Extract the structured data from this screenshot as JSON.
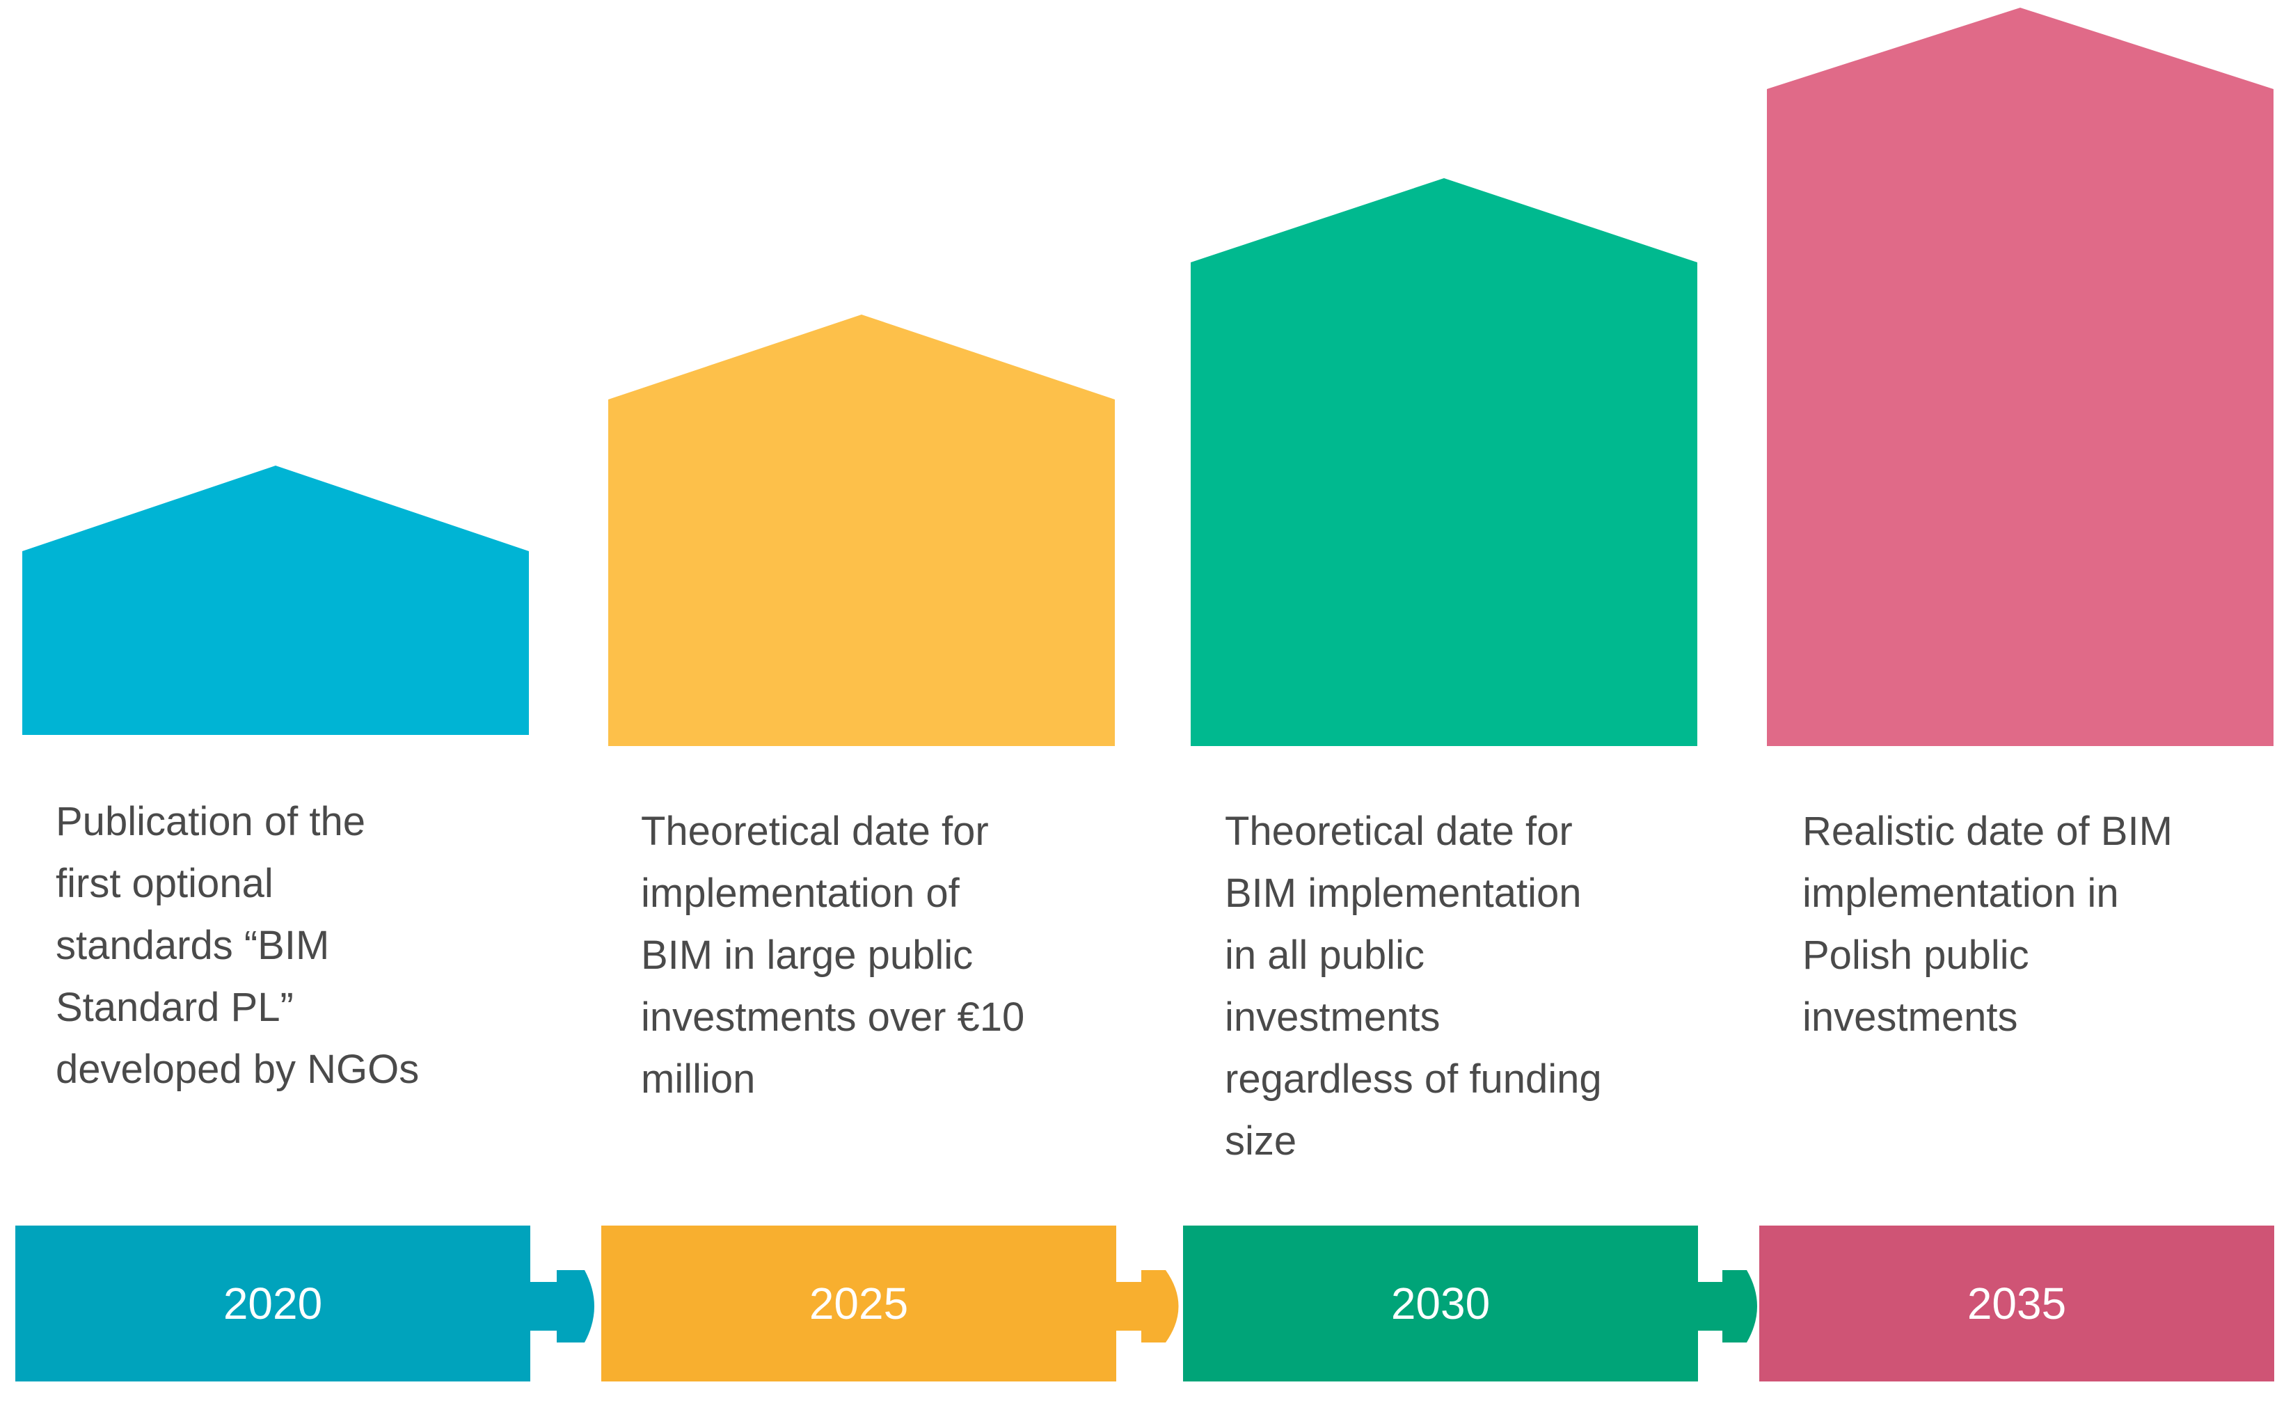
{
  "milestones": [
    {
      "year": "2020",
      "description": "Publication of the\nfirst optional\nstandards “BIM\nStandard PL”\ndeveloped by NGOs",
      "house_color": "#00B4D4",
      "bar_color": "#00A3BC"
    },
    {
      "year": "2025",
      "description": "Theoretical date for\nimplementation of\nBIM in large public\ninvestments over €10\nmillion",
      "house_color": "#FDC04A",
      "bar_color": "#F8AF2F"
    },
    {
      "year": "2030",
      "description": "Theoretical date for\nBIM implementation\nin all public\ninvestments\nregardless of funding\nsize",
      "house_color": "#00B98F",
      "bar_color": "#00A478"
    },
    {
      "year": "2035",
      "description": "Realistic date of BIM\nimplementation in\nPolish public\ninvestments",
      "house_color": "#E06A88",
      "bar_color": "#CF5475"
    }
  ]
}
